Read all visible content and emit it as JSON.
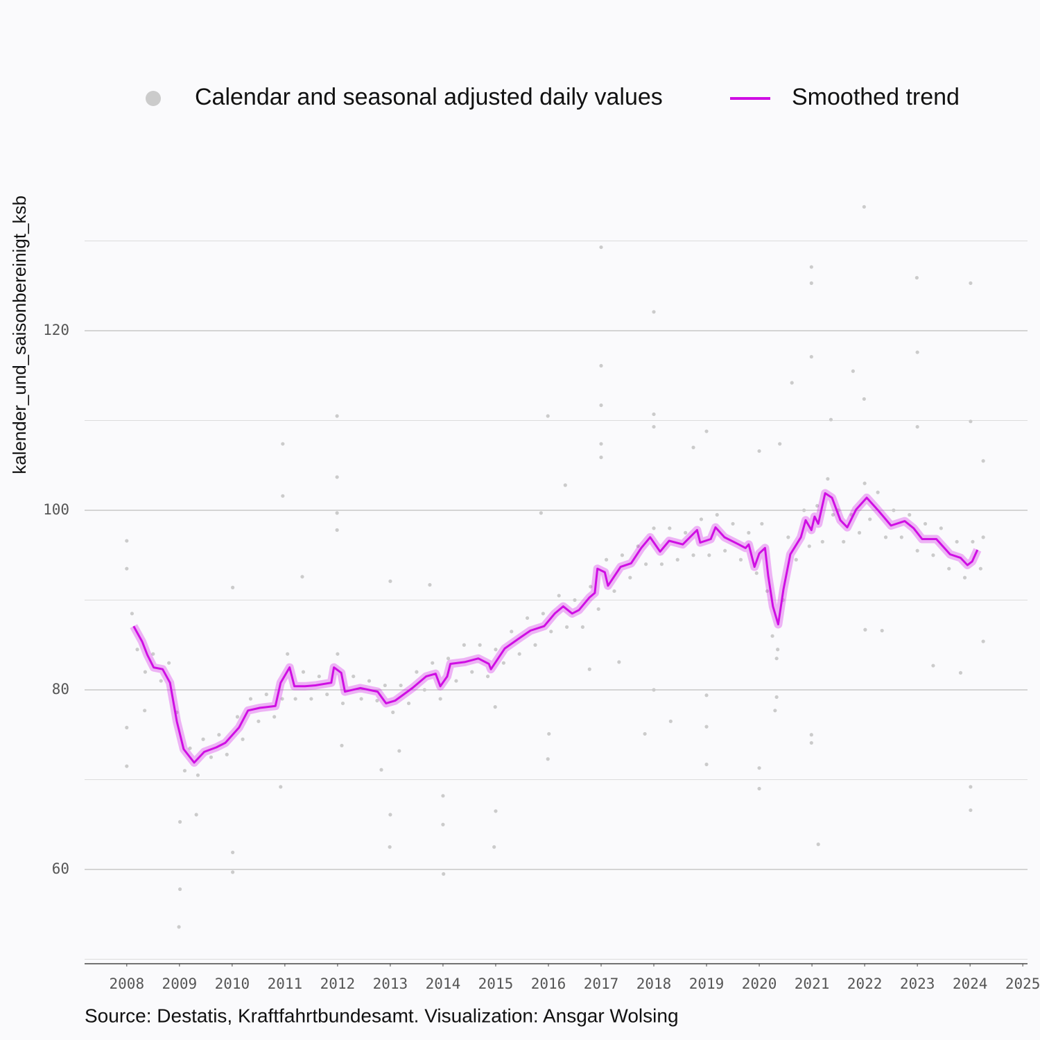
{
  "chart_data": {
    "type": "line",
    "y_label": "kalender_und_saisonbereinigt_ksb",
    "caption": "Source: Destatis, Kraftfahrtbundesamt. Visualization: Ansgar Wolsing",
    "xlim": [
      2007.2,
      2025.09
    ],
    "xticks": [
      2008,
      2009,
      2010,
      2011,
      2012,
      2013,
      2014,
      2015,
      2016,
      2017,
      2018,
      2019,
      2020,
      2021,
      2022,
      2023,
      2024,
      2025
    ],
    "ylim": [
      49.5,
      135
    ],
    "yticks": [
      60,
      80,
      100,
      120
    ],
    "y_minor_grid": [
      50,
      70,
      90,
      110,
      130
    ],
    "grid": true,
    "legend": "top",
    "series": [
      {
        "name": "Calendar and seasonal adjusted daily values",
        "type": "scatter",
        "color": "#cbcbcb",
        "x": [
          2008.0,
          2008.0,
          2008.0,
          2008.0,
          2008.34,
          2008.99,
          2009.01,
          2009.01,
          2009.32,
          2010.01,
          2010.01,
          2010.01,
          2010.96,
          2010.96,
          2010.92,
          2011.33,
          2011.99,
          2011.99,
          2011.99,
          2011.99,
          2012.08,
          2012.83,
          2012.99,
          2013.0,
          2013.0,
          2013.17,
          2013.75,
          2014.01,
          2014.0,
          2014.0,
          2015.0,
          2014.97,
          2014.99,
          2015.99,
          2015.99,
          2016.01,
          2015.86,
          2016.32,
          2016.78,
          2017.0,
          2017.0,
          2017.0,
          2017.0,
          2017.0,
          2017.34,
          2017.83,
          2018.0,
          2018.0,
          2018.0,
          2018.0,
          2018.32,
          2018.75,
          2019.0,
          2019.0,
          2019.0,
          2019.0,
          2020.0,
          2020.0,
          2020.0,
          2020.3,
          2020.33,
          2020.33,
          2020.39,
          2020.62,
          2020.99,
          2020.99,
          2020.99,
          2020.99,
          2020.99,
          2021.12,
          2021.36,
          2021.78,
          2021.99,
          2021.99,
          2022.01,
          2022.33,
          2022.99,
          2023.0,
          2023.0,
          2023.3,
          2023.82,
          2024.01,
          2024.01,
          2024.01,
          2024.01,
          2024.25,
          2024.25,
          2008.1,
          2008.2,
          2008.35,
          2008.5,
          2008.65,
          2008.8,
          2008.95,
          2009.1,
          2009.2,
          2009.35,
          2009.45,
          2009.6,
          2009.75,
          2009.9,
          2010.1,
          2010.2,
          2010.35,
          2010.5,
          2010.65,
          2010.8,
          2010.95,
          2011.05,
          2011.2,
          2011.35,
          2011.5,
          2011.65,
          2011.8,
          2012.0,
          2012.1,
          2012.3,
          2012.45,
          2012.6,
          2012.75,
          2012.9,
          2013.05,
          2013.2,
          2013.35,
          2013.5,
          2013.65,
          2013.8,
          2013.95,
          2014.1,
          2014.25,
          2014.4,
          2014.55,
          2014.7,
          2014.85,
          2015.0,
          2015.15,
          2015.3,
          2015.45,
          2015.6,
          2015.75,
          2015.9,
          2016.05,
          2016.2,
          2016.35,
          2016.5,
          2016.65,
          2016.8,
          2016.95,
          2017.1,
          2017.25,
          2017.4,
          2017.55,
          2017.7,
          2017.85,
          2018.0,
          2018.15,
          2018.3,
          2018.45,
          2018.6,
          2018.75,
          2018.9,
          2019.05,
          2019.2,
          2019.35,
          2019.5,
          2019.65,
          2019.8,
          2019.95,
          2020.05,
          2020.15,
          2020.25,
          2020.35,
          2020.45,
          2020.55,
          2020.7,
          2020.85,
          2020.95,
          2021.1,
          2021.2,
          2021.3,
          2021.4,
          2021.5,
          2021.6,
          2021.75,
          2021.9,
          2022.0,
          2022.1,
          2022.25,
          2022.4,
          2022.55,
          2022.7,
          2022.85,
          2023.0,
          2023.15,
          2023.3,
          2023.45,
          2023.6,
          2023.75,
          2023.9,
          2024.05,
          2024.2,
          2024.25
        ],
        "values": [
          96.6,
          93.5,
          75.8,
          71.5,
          77.7,
          53.6,
          57.8,
          65.3,
          66.1,
          61.9,
          59.7,
          91.4,
          107.4,
          101.6,
          69.2,
          92.6,
          110.5,
          103.7,
          99.7,
          97.8,
          73.8,
          71.1,
          62.5,
          66.1,
          92.1,
          73.2,
          91.7,
          59.5,
          68.2,
          65.0,
          66.5,
          62.5,
          78.1,
          110.5,
          72.3,
          75.1,
          99.7,
          102.8,
          82.3,
          129.3,
          116.1,
          111.7,
          107.4,
          105.9,
          83.1,
          75.1,
          122.1,
          110.7,
          109.3,
          80.0,
          76.5,
          107.0,
          108.8,
          71.7,
          75.9,
          79.4,
          69.0,
          71.3,
          106.6,
          77.7,
          83.5,
          79.2,
          107.4,
          114.2,
          127.1,
          125.3,
          117.1,
          75.0,
          74.1,
          62.8,
          110.1,
          115.5,
          133.8,
          112.4,
          86.7,
          86.6,
          125.9,
          117.6,
          109.3,
          82.7,
          81.9,
          125.3,
          69.2,
          66.6,
          109.9,
          105.5,
          85.4,
          88.5,
          84.5,
          82.0,
          84.0,
          81.0,
          83.0,
          77.5,
          71.0,
          73.5,
          70.5,
          74.5,
          72.5,
          75.0,
          72.8,
          77.0,
          74.5,
          79.0,
          76.5,
          79.5,
          77.0,
          79.0,
          84.0,
          79.0,
          82.0,
          79.0,
          81.5,
          79.5,
          84.0,
          78.5,
          81.5,
          79.0,
          81.0,
          78.8,
          80.5,
          77.5,
          80.5,
          78.5,
          82.0,
          80.0,
          83.0,
          79.0,
          83.5,
          81.0,
          85.0,
          82.0,
          85.0,
          81.5,
          84.5,
          83.0,
          86.5,
          84.0,
          88.0,
          85.0,
          88.5,
          86.5,
          90.5,
          87.0,
          90.0,
          87.0,
          91.5,
          89.0,
          94.5,
          91.0,
          95.0,
          92.5,
          96.0,
          94.0,
          98.0,
          94.0,
          98.0,
          94.5,
          97.5,
          95.0,
          99.0,
          95.0,
          99.5,
          95.5,
          98.5,
          94.5,
          97.5,
          93.0,
          98.5,
          91.0,
          86.0,
          84.5,
          90.0,
          97.0,
          94.5,
          100.0,
          96.0,
          100.5,
          96.5,
          103.5,
          99.5,
          100.0,
          96.5,
          99.5,
          97.5,
          103.0,
          99.0,
          102.0,
          97.0,
          100.0,
          97.0,
          99.5,
          95.5,
          98.5,
          95.0,
          98.0,
          93.5,
          96.5,
          92.5,
          96.5,
          93.5,
          97.0
        ]
      },
      {
        "name": "Smoothed trend",
        "type": "line",
        "color": "#cf0ee3",
        "x": [
          2008.13,
          2008.29,
          2008.39,
          2008.51,
          2008.68,
          2008.82,
          2008.95,
          2009.08,
          2009.28,
          2009.47,
          2009.7,
          2009.87,
          2010.13,
          2010.3,
          2010.53,
          2010.82,
          2010.92,
          2011.09,
          2011.18,
          2011.38,
          2011.58,
          2011.88,
          2011.93,
          2012.07,
          2012.14,
          2012.43,
          2012.76,
          2012.92,
          2013.09,
          2013.42,
          2013.68,
          2013.86,
          2013.95,
          2014.08,
          2014.14,
          2014.41,
          2014.67,
          2014.87,
          2014.91,
          2015.17,
          2015.46,
          2015.66,
          2015.92,
          2016.12,
          2016.28,
          2016.45,
          2016.58,
          2016.78,
          2016.88,
          2016.93,
          2017.07,
          2017.13,
          2017.37,
          2017.57,
          2017.76,
          2017.93,
          2018.12,
          2018.29,
          2018.55,
          2018.82,
          2018.88,
          2019.08,
          2019.17,
          2019.34,
          2019.61,
          2019.74,
          2019.8,
          2019.91,
          2020.0,
          2020.11,
          2020.17,
          2020.26,
          2020.36,
          2020.46,
          2020.59,
          2020.79,
          2020.88,
          2020.99,
          2021.05,
          2021.12,
          2021.25,
          2021.38,
          2021.54,
          2021.67,
          2021.84,
          2022.04,
          2022.24,
          2022.5,
          2022.76,
          2022.93,
          2023.09,
          2023.36,
          2023.62,
          2023.82,
          2023.95,
          2024.04,
          2024.14
        ],
        "values": [
          87.1,
          85.4,
          83.9,
          82.5,
          82.3,
          80.8,
          76.5,
          73.4,
          71.9,
          73.1,
          73.6,
          74.1,
          75.8,
          77.7,
          78.0,
          78.2,
          80.8,
          82.5,
          80.4,
          80.4,
          80.5,
          80.8,
          82.5,
          81.9,
          79.8,
          80.2,
          79.8,
          78.5,
          78.8,
          80.2,
          81.5,
          81.8,
          80.4,
          81.5,
          82.9,
          83.1,
          83.5,
          82.9,
          82.3,
          84.6,
          85.8,
          86.6,
          87.1,
          88.5,
          89.3,
          88.5,
          88.9,
          90.3,
          90.8,
          93.5,
          93.1,
          91.6,
          93.7,
          94.1,
          95.8,
          97.0,
          95.4,
          96.6,
          96.2,
          97.8,
          96.4,
          96.8,
          98.1,
          97.0,
          96.2,
          95.8,
          96.2,
          93.7,
          95.2,
          95.8,
          92.7,
          89.3,
          87.3,
          91.2,
          95.1,
          97.0,
          98.9,
          97.8,
          99.3,
          98.5,
          101.9,
          101.4,
          98.9,
          98.1,
          100.1,
          101.4,
          100.1,
          98.3,
          98.8,
          98.0,
          96.8,
          96.8,
          95.1,
          94.7,
          93.9,
          94.3,
          95.6
        ]
      }
    ]
  }
}
